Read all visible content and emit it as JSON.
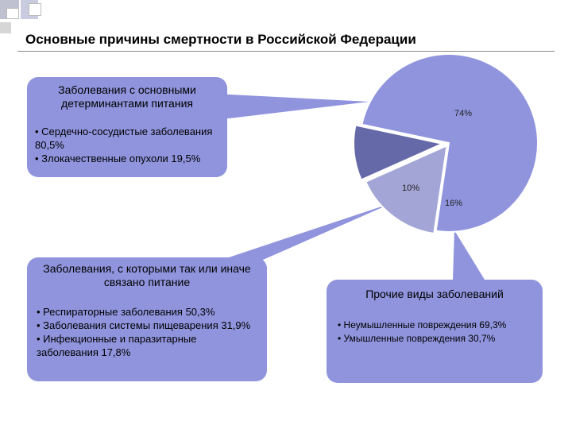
{
  "title": "Основные причины смертности  в Российской Федерации",
  "colors": {
    "large": "#8f94dd",
    "medium": "#6669a8",
    "small": "#a3a5d6",
    "box": "#8f94dd"
  },
  "chart_data": {
    "type": "pie",
    "slices": [
      {
        "value": 74,
        "label": "74%",
        "color": "#8f94dd"
      },
      {
        "value": 10,
        "label": "10%",
        "color": "#6669a8"
      },
      {
        "value": 16,
        "label": "16%",
        "color": "#a3a5d6"
      }
    ]
  },
  "boxes": {
    "nutrition_determinants": {
      "heading": "Заболевания с основными детерминантами питания",
      "items": [
        "• Сердечно-сосудистые заболевания 80,5%",
        "• Злокачественные опухоли 19,5%"
      ]
    },
    "nutrition_related": {
      "heading": "Заболевания, с которыми так или иначе связано питание",
      "items": [
        "• Респираторные заболевания 50,3%",
        "• Заболевания системы пищеварения 31,9%",
        "• Инфекционные и паразитарные заболевания  17,8%"
      ]
    },
    "other": {
      "heading": "Прочие виды заболеваний",
      "items": [
        "• Неумышленные повреждения 69,3%",
        "• Умышленные повреждения 30,7%"
      ]
    }
  }
}
